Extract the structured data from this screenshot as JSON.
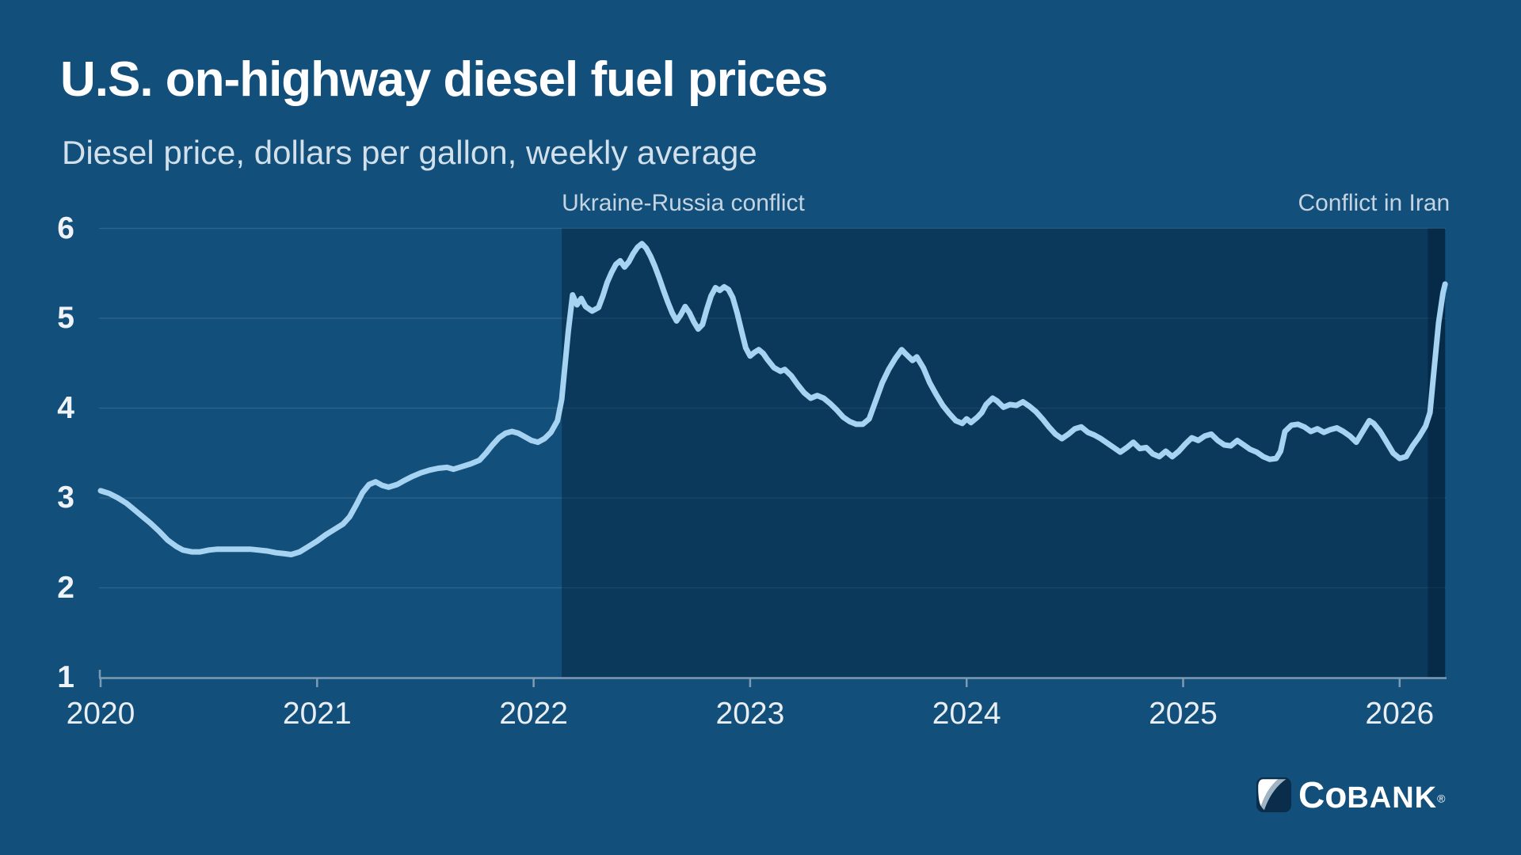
{
  "header": {
    "title": "U.S. on-highway diesel fuel prices",
    "subtitle": "Diesel price, dollars per gallon, weekly average"
  },
  "logo": {
    "text_co": "Co",
    "text_bank": "BANK",
    "registered": "®"
  },
  "colors": {
    "background": "#124F7B",
    "band_overlay": "rgba(0,24,44,0.39)",
    "line": "#A6D3F2",
    "gridline": "#2F648C",
    "axis": "#7E9BB4",
    "title": "#FFFFFF",
    "subtitle": "#D2E0EB",
    "annotation": "#C4D4E2",
    "x_label": "#E9EEF3",
    "y_label": "#EFF3F7",
    "logo_navy": "#0A2D4B",
    "logo_slate": "#A0B4C4",
    "logo_white": "#FFFFFF"
  },
  "chart_data": {
    "type": "line",
    "title": "U.S. on-highway diesel fuel prices",
    "subtitle": "Diesel price, dollars per gallon, weekly average",
    "xlabel": "",
    "ylabel": "Diesel price, dollars per gallon",
    "grid": true,
    "legend_position": "none",
    "xlim": [
      2020,
      2026.21
    ],
    "ylim": [
      1,
      6
    ],
    "x_ticks": [
      2020,
      2021,
      2022,
      2023,
      2024,
      2025,
      2026
    ],
    "y_ticks": [
      1,
      2,
      3,
      4,
      5,
      6
    ],
    "bands": [
      {
        "name": "ukraine-russia-band",
        "label": "Ukraine-Russia conflict",
        "x_start": 2022.13,
        "x_end": 2026.21,
        "label_align": "left"
      },
      {
        "name": "iran-conflict-band",
        "label": "Conflict in Iran",
        "x_start": 2026.13,
        "x_end": 2026.21,
        "label_align": "right"
      }
    ],
    "series": [
      {
        "name": "U.S. on-highway diesel price, weekly average ($/gal)",
        "points": [
          [
            2020.0,
            3.08
          ],
          [
            2020.04,
            3.05
          ],
          [
            2020.08,
            3.0
          ],
          [
            2020.12,
            2.94
          ],
          [
            2020.15,
            2.88
          ],
          [
            2020.19,
            2.8
          ],
          [
            2020.23,
            2.72
          ],
          [
            2020.27,
            2.63
          ],
          [
            2020.31,
            2.53
          ],
          [
            2020.35,
            2.46
          ],
          [
            2020.38,
            2.42
          ],
          [
            2020.42,
            2.4
          ],
          [
            2020.46,
            2.4
          ],
          [
            2020.5,
            2.42
          ],
          [
            2020.54,
            2.43
          ],
          [
            2020.58,
            2.43
          ],
          [
            2020.62,
            2.43
          ],
          [
            2020.65,
            2.43
          ],
          [
            2020.69,
            2.43
          ],
          [
            2020.73,
            2.42
          ],
          [
            2020.77,
            2.41
          ],
          [
            2020.81,
            2.39
          ],
          [
            2020.85,
            2.38
          ],
          [
            2020.88,
            2.37
          ],
          [
            2020.92,
            2.4
          ],
          [
            2020.96,
            2.46
          ],
          [
            2021.0,
            2.52
          ],
          [
            2021.04,
            2.59
          ],
          [
            2021.08,
            2.65
          ],
          [
            2021.12,
            2.71
          ],
          [
            2021.15,
            2.79
          ],
          [
            2021.18,
            2.92
          ],
          [
            2021.21,
            3.06
          ],
          [
            2021.24,
            3.15
          ],
          [
            2021.27,
            3.18
          ],
          [
            2021.3,
            3.14
          ],
          [
            2021.33,
            3.12
          ],
          [
            2021.37,
            3.15
          ],
          [
            2021.4,
            3.19
          ],
          [
            2021.44,
            3.24
          ],
          [
            2021.48,
            3.28
          ],
          [
            2021.52,
            3.31
          ],
          [
            2021.56,
            3.33
          ],
          [
            2021.6,
            3.34
          ],
          [
            2021.63,
            3.32
          ],
          [
            2021.67,
            3.35
          ],
          [
            2021.71,
            3.38
          ],
          [
            2021.75,
            3.42
          ],
          [
            2021.78,
            3.5
          ],
          [
            2021.81,
            3.59
          ],
          [
            2021.84,
            3.67
          ],
          [
            2021.87,
            3.72
          ],
          [
            2021.9,
            3.74
          ],
          [
            2021.93,
            3.72
          ],
          [
            2021.96,
            3.68
          ],
          [
            2021.99,
            3.64
          ],
          [
            2022.02,
            3.62
          ],
          [
            2022.05,
            3.66
          ],
          [
            2022.08,
            3.73
          ],
          [
            2022.11,
            3.86
          ],
          [
            2022.13,
            4.1
          ],
          [
            2022.16,
            4.85
          ],
          [
            2022.18,
            5.26
          ],
          [
            2022.2,
            5.15
          ],
          [
            2022.22,
            5.22
          ],
          [
            2022.24,
            5.13
          ],
          [
            2022.27,
            5.08
          ],
          [
            2022.3,
            5.12
          ],
          [
            2022.32,
            5.25
          ],
          [
            2022.34,
            5.4
          ],
          [
            2022.36,
            5.51
          ],
          [
            2022.38,
            5.6
          ],
          [
            2022.4,
            5.64
          ],
          [
            2022.42,
            5.57
          ],
          [
            2022.44,
            5.63
          ],
          [
            2022.46,
            5.72
          ],
          [
            2022.48,
            5.79
          ],
          [
            2022.5,
            5.83
          ],
          [
            2022.52,
            5.78
          ],
          [
            2022.54,
            5.69
          ],
          [
            2022.56,
            5.58
          ],
          [
            2022.58,
            5.45
          ],
          [
            2022.6,
            5.31
          ],
          [
            2022.62,
            5.18
          ],
          [
            2022.64,
            5.06
          ],
          [
            2022.66,
            4.97
          ],
          [
            2022.68,
            5.04
          ],
          [
            2022.7,
            5.13
          ],
          [
            2022.72,
            5.06
          ],
          [
            2022.74,
            4.96
          ],
          [
            2022.76,
            4.88
          ],
          [
            2022.78,
            4.93
          ],
          [
            2022.8,
            5.1
          ],
          [
            2022.82,
            5.25
          ],
          [
            2022.84,
            5.34
          ],
          [
            2022.86,
            5.31
          ],
          [
            2022.88,
            5.35
          ],
          [
            2022.9,
            5.32
          ],
          [
            2022.92,
            5.23
          ],
          [
            2022.94,
            5.06
          ],
          [
            2022.96,
            4.86
          ],
          [
            2022.98,
            4.67
          ],
          [
            2023.0,
            4.58
          ],
          [
            2023.02,
            4.62
          ],
          [
            2023.04,
            4.65
          ],
          [
            2023.06,
            4.61
          ],
          [
            2023.08,
            4.54
          ],
          [
            2023.11,
            4.45
          ],
          [
            2023.14,
            4.41
          ],
          [
            2023.16,
            4.43
          ],
          [
            2023.19,
            4.36
          ],
          [
            2023.22,
            4.26
          ],
          [
            2023.25,
            4.17
          ],
          [
            2023.28,
            4.11
          ],
          [
            2023.31,
            4.14
          ],
          [
            2023.34,
            4.11
          ],
          [
            2023.37,
            4.05
          ],
          [
            2023.4,
            3.98
          ],
          [
            2023.43,
            3.9
          ],
          [
            2023.46,
            3.85
          ],
          [
            2023.49,
            3.82
          ],
          [
            2023.52,
            3.82
          ],
          [
            2023.55,
            3.88
          ],
          [
            2023.58,
            4.08
          ],
          [
            2023.61,
            4.28
          ],
          [
            2023.64,
            4.43
          ],
          [
            2023.67,
            4.55
          ],
          [
            2023.7,
            4.65
          ],
          [
            2023.72,
            4.6
          ],
          [
            2023.75,
            4.53
          ],
          [
            2023.77,
            4.57
          ],
          [
            2023.8,
            4.45
          ],
          [
            2023.83,
            4.28
          ],
          [
            2023.86,
            4.15
          ],
          [
            2023.89,
            4.03
          ],
          [
            2023.92,
            3.94
          ],
          [
            2023.95,
            3.86
          ],
          [
            2023.98,
            3.83
          ],
          [
            2024.0,
            3.88
          ],
          [
            2024.02,
            3.84
          ],
          [
            2024.05,
            3.9
          ],
          [
            2024.07,
            3.95
          ],
          [
            2024.09,
            4.04
          ],
          [
            2024.12,
            4.11
          ],
          [
            2024.14,
            4.08
          ],
          [
            2024.17,
            4.01
          ],
          [
            2024.2,
            4.04
          ],
          [
            2024.23,
            4.03
          ],
          [
            2024.26,
            4.07
          ],
          [
            2024.29,
            4.02
          ],
          [
            2024.32,
            3.96
          ],
          [
            2024.35,
            3.88
          ],
          [
            2024.38,
            3.79
          ],
          [
            2024.41,
            3.71
          ],
          [
            2024.44,
            3.66
          ],
          [
            2024.47,
            3.71
          ],
          [
            2024.5,
            3.77
          ],
          [
            2024.53,
            3.79
          ],
          [
            2024.56,
            3.73
          ],
          [
            2024.59,
            3.7
          ],
          [
            2024.62,
            3.66
          ],
          [
            2024.65,
            3.61
          ],
          [
            2024.68,
            3.56
          ],
          [
            2024.71,
            3.51
          ],
          [
            2024.74,
            3.56
          ],
          [
            2024.77,
            3.62
          ],
          [
            2024.8,
            3.55
          ],
          [
            2024.83,
            3.56
          ],
          [
            2024.86,
            3.49
          ],
          [
            2024.89,
            3.46
          ],
          [
            2024.92,
            3.52
          ],
          [
            2024.95,
            3.46
          ],
          [
            2024.98,
            3.52
          ],
          [
            2025.01,
            3.6
          ],
          [
            2025.04,
            3.67
          ],
          [
            2025.07,
            3.64
          ],
          [
            2025.1,
            3.69
          ],
          [
            2025.13,
            3.71
          ],
          [
            2025.16,
            3.64
          ],
          [
            2025.19,
            3.59
          ],
          [
            2025.22,
            3.58
          ],
          [
            2025.25,
            3.64
          ],
          [
            2025.28,
            3.59
          ],
          [
            2025.31,
            3.54
          ],
          [
            2025.34,
            3.51
          ],
          [
            2025.37,
            3.46
          ],
          [
            2025.4,
            3.43
          ],
          [
            2025.43,
            3.44
          ],
          [
            2025.45,
            3.52
          ],
          [
            2025.47,
            3.74
          ],
          [
            2025.5,
            3.81
          ],
          [
            2025.53,
            3.82
          ],
          [
            2025.56,
            3.79
          ],
          [
            2025.59,
            3.74
          ],
          [
            2025.62,
            3.77
          ],
          [
            2025.65,
            3.73
          ],
          [
            2025.68,
            3.76
          ],
          [
            2025.71,
            3.78
          ],
          [
            2025.74,
            3.74
          ],
          [
            2025.77,
            3.69
          ],
          [
            2025.8,
            3.62
          ],
          [
            2025.83,
            3.74
          ],
          [
            2025.86,
            3.86
          ],
          [
            2025.88,
            3.83
          ],
          [
            2025.91,
            3.74
          ],
          [
            2025.94,
            3.62
          ],
          [
            2025.97,
            3.5
          ],
          [
            2026.0,
            3.44
          ],
          [
            2026.03,
            3.46
          ],
          [
            2026.06,
            3.58
          ],
          [
            2026.09,
            3.68
          ],
          [
            2026.12,
            3.8
          ],
          [
            2026.14,
            3.95
          ],
          [
            2026.16,
            4.45
          ],
          [
            2026.18,
            4.95
          ],
          [
            2026.2,
            5.28
          ],
          [
            2026.21,
            5.38
          ]
        ]
      }
    ]
  }
}
